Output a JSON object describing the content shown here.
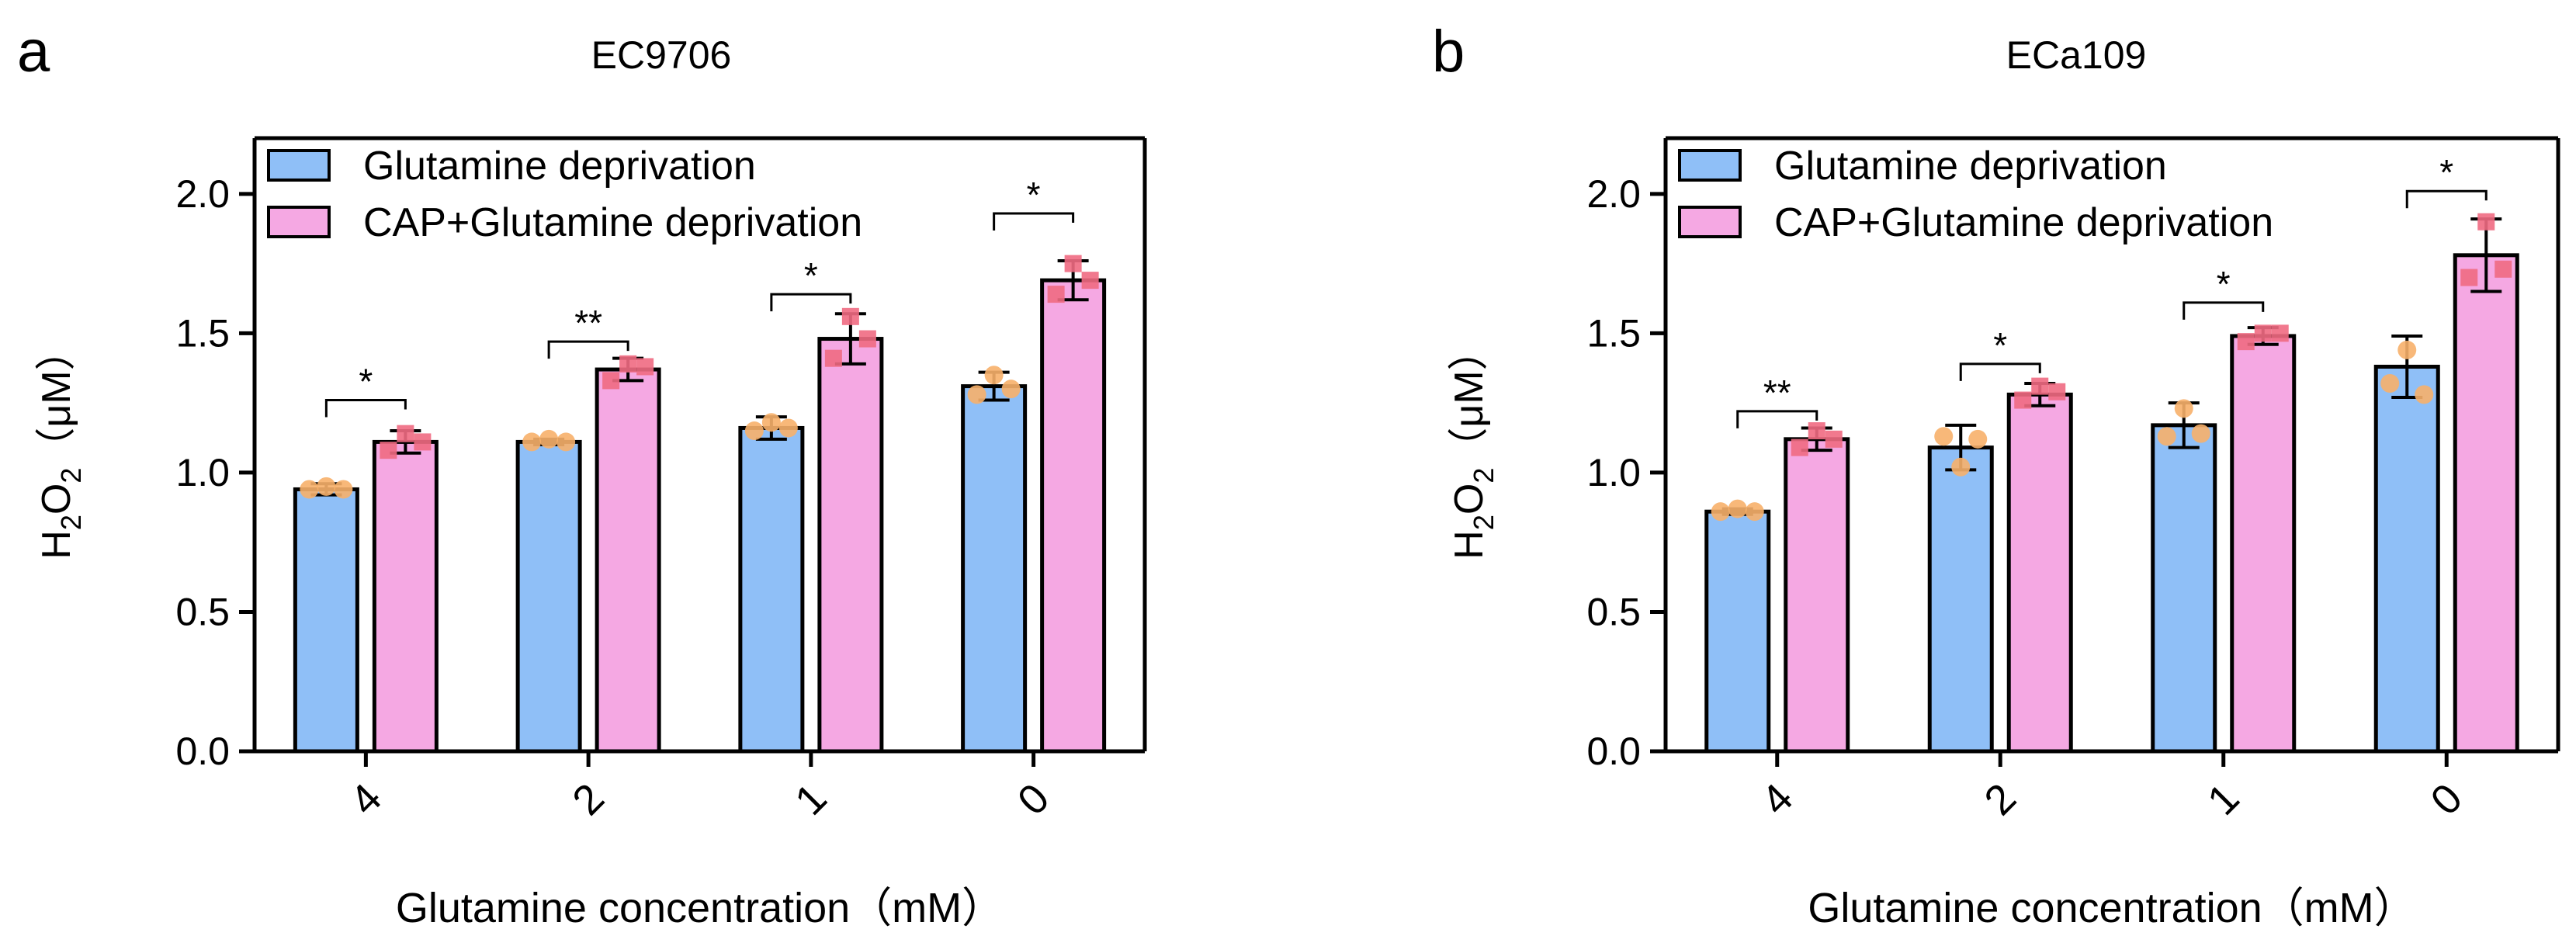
{
  "panels_order": [
    "a",
    "b"
  ],
  "chart_data": [
    {
      "panel_label": "a",
      "type": "bar",
      "title": "EC9706",
      "xlabel": "Glutamine concentration（mM）",
      "ylabel": {
        "main": "H",
        "sub1": "2",
        "mid": "O",
        "sub2": "2",
        "unit": "（μM）"
      },
      "ylim": [
        0,
        2.2
      ],
      "yticks": [
        "0.0",
        "0.5",
        "1.0",
        "1.5",
        "2.0"
      ],
      "categories": [
        "4",
        "2",
        "1",
        "0"
      ],
      "legend_position": "top-left",
      "series": [
        {
          "name": "Glutamine deprivation",
          "color": "#8fbff7",
          "point_color": "#f7b06a",
          "values": [
            0.94,
            1.11,
            1.16,
            1.31
          ],
          "errors": [
            0.02,
            0.01,
            0.04,
            0.05
          ],
          "points": [
            [
              0.94,
              0.95,
              0.94
            ],
            [
              1.11,
              1.12,
              1.11
            ],
            [
              1.15,
              1.18,
              1.16
            ],
            [
              1.28,
              1.35,
              1.3
            ]
          ]
        },
        {
          "name": "CAP+Glutamine deprivation",
          "color": "#f5a8e3",
          "point_color": "#f06a82",
          "values": [
            1.11,
            1.37,
            1.48,
            1.69
          ],
          "errors": [
            0.04,
            0.04,
            0.09,
            0.07
          ],
          "points": [
            [
              1.08,
              1.14,
              1.11
            ],
            [
              1.33,
              1.39,
              1.38
            ],
            [
              1.41,
              1.56,
              1.48
            ],
            [
              1.64,
              1.75,
              1.69
            ]
          ]
        }
      ],
      "significance": [
        {
          "category": "4",
          "label": "*",
          "level": 1.26
        },
        {
          "category": "2",
          "label": "**",
          "level": 1.47
        },
        {
          "category": "1",
          "label": "*",
          "level": 1.64
        },
        {
          "category": "0",
          "label": "*",
          "level": 1.93
        }
      ]
    },
    {
      "panel_label": "b",
      "type": "bar",
      "title": "ECa109",
      "xlabel": "Glutamine concentration（mM）",
      "ylabel": {
        "main": "H",
        "sub1": "2",
        "mid": "O",
        "sub2": "2",
        "unit": "（μM）"
      },
      "ylim": [
        0,
        2.2
      ],
      "yticks": [
        "0.0",
        "0.5",
        "1.0",
        "1.5",
        "2.0"
      ],
      "categories": [
        "4",
        "2",
        "1",
        "0"
      ],
      "legend_position": "top-left",
      "series": [
        {
          "name": "Glutamine deprivation",
          "color": "#8fbff7",
          "point_color": "#f7b06a",
          "values": [
            0.86,
            1.09,
            1.17,
            1.38
          ],
          "errors": [
            0.01,
            0.08,
            0.08,
            0.11
          ],
          "points": [
            [
              0.86,
              0.87,
              0.86
            ],
            [
              1.13,
              1.02,
              1.12
            ],
            [
              1.13,
              1.23,
              1.14
            ],
            [
              1.32,
              1.44,
              1.28
            ]
          ]
        },
        {
          "name": "CAP+Glutamine deprivation",
          "color": "#f5a8e3",
          "point_color": "#f06a82",
          "values": [
            1.12,
            1.28,
            1.49,
            1.78
          ],
          "errors": [
            0.04,
            0.04,
            0.03,
            0.13
          ],
          "points": [
            [
              1.09,
              1.15,
              1.12
            ],
            [
              1.26,
              1.31,
              1.29
            ],
            [
              1.47,
              1.5,
              1.5
            ],
            [
              1.7,
              1.9,
              1.73
            ]
          ]
        }
      ],
      "significance": [
        {
          "category": "4",
          "label": "**",
          "level": 1.22
        },
        {
          "category": "2",
          "label": "*",
          "level": 1.39
        },
        {
          "category": "1",
          "label": "*",
          "level": 1.61
        },
        {
          "category": "0",
          "label": "*",
          "level": 2.01
        }
      ]
    }
  ]
}
